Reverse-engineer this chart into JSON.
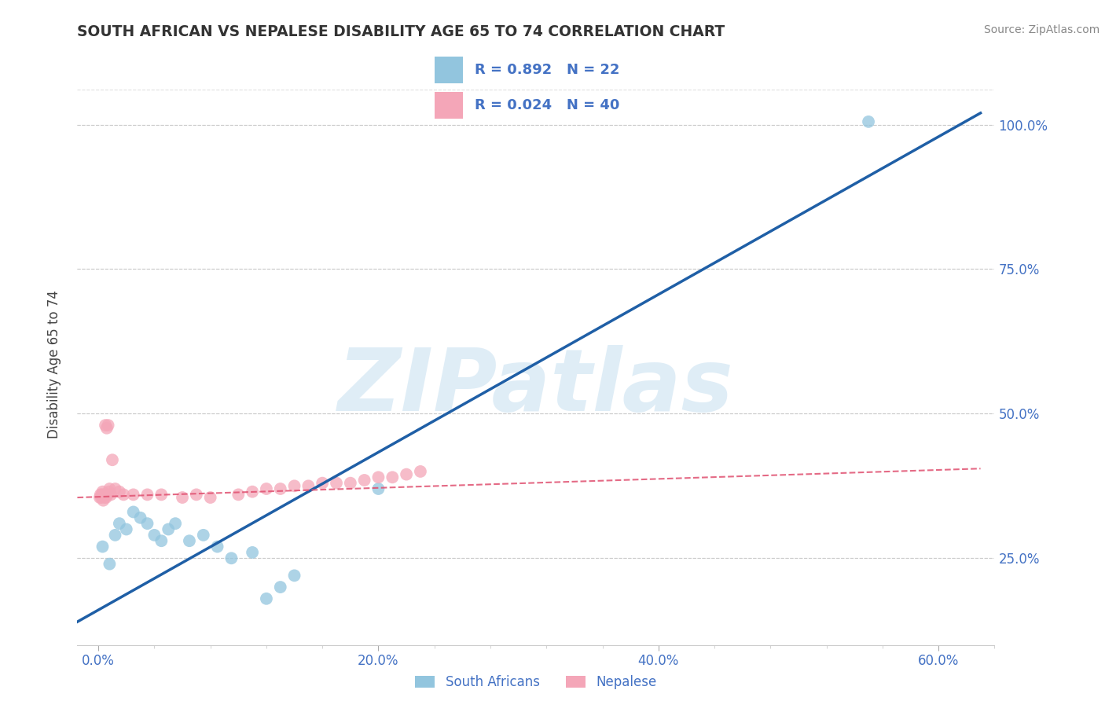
{
  "title": "SOUTH AFRICAN VS NEPALESE DISABILITY AGE 65 TO 74 CORRELATION CHART",
  "source_text": "Source: ZipAtlas.com",
  "ylabel": "Disability Age 65 to 74",
  "xlabel_ticks": [
    "0.0%",
    "",
    "",
    "",
    "",
    "20.0%",
    "",
    "",
    "",
    "",
    "40.0%",
    "",
    "",
    "",
    "",
    "60.0%"
  ],
  "xlabel_vals": [
    0.0,
    4.0,
    8.0,
    12.0,
    16.0,
    20.0,
    24.0,
    28.0,
    32.0,
    36.0,
    40.0,
    44.0,
    48.0,
    52.0,
    56.0,
    60.0
  ],
  "xlim": [
    -1.5,
    63.0
  ],
  "ylim": [
    10.0,
    107.0
  ],
  "ytick_labels": [
    "25.0%",
    "50.0%",
    "75.0%",
    "100.0%"
  ],
  "ytick_vals": [
    25.0,
    50.0,
    75.0,
    100.0
  ],
  "watermark": "ZIPatlas",
  "legend_r_blue": "R = 0.892",
  "legend_n_blue": "N = 22",
  "legend_r_pink": "R = 0.024",
  "legend_n_pink": "N = 40",
  "legend_label_blue": "South Africans",
  "legend_label_pink": "Nepalese",
  "blue_color": "#92c5de",
  "pink_color": "#f4a6b8",
  "blue_line_color": "#1f5fa6",
  "pink_line_color": "#e05070",
  "background_color": "#ffffff",
  "grid_color": "#cccccc",
  "south_african_x": [
    0.3,
    0.8,
    1.2,
    1.5,
    2.0,
    2.5,
    3.0,
    3.5,
    4.0,
    4.5,
    5.0,
    5.5,
    6.5,
    7.5,
    8.5,
    9.5,
    11.0,
    12.0,
    13.0,
    14.0,
    20.0,
    55.0
  ],
  "south_african_y": [
    27.0,
    24.0,
    29.0,
    31.0,
    30.0,
    33.0,
    32.0,
    31.0,
    29.0,
    28.0,
    30.0,
    31.0,
    28.0,
    29.0,
    27.0,
    25.0,
    26.0,
    18.0,
    20.0,
    22.0,
    37.0,
    100.5
  ],
  "nepalese_x": [
    0.1,
    0.15,
    0.2,
    0.25,
    0.3,
    0.35,
    0.4,
    0.45,
    0.5,
    0.55,
    0.6,
    0.65,
    0.7,
    0.75,
    0.8,
    0.9,
    1.0,
    1.2,
    1.5,
    1.8,
    2.5,
    3.5,
    4.5,
    6.0,
    7.0,
    8.0,
    10.0,
    11.0,
    12.0,
    13.0,
    14.0,
    15.0,
    16.0,
    17.0,
    18.0,
    19.0,
    20.0,
    21.0,
    22.0,
    23.0
  ],
  "nepalese_y": [
    35.5,
    36.0,
    35.5,
    36.0,
    36.5,
    35.0,
    36.0,
    35.5,
    48.0,
    35.5,
    47.5,
    36.0,
    48.0,
    36.5,
    37.0,
    36.0,
    42.0,
    37.0,
    36.5,
    36.0,
    36.0,
    36.0,
    36.0,
    35.5,
    36.0,
    35.5,
    36.0,
    36.5,
    37.0,
    37.0,
    37.5,
    37.5,
    38.0,
    38.0,
    38.0,
    38.5,
    39.0,
    39.0,
    39.5,
    40.0
  ],
  "blue_line_x0": -1.5,
  "blue_line_y0": 14.0,
  "blue_line_x1": 63.0,
  "blue_line_y1": 102.0,
  "pink_line_x0": -1.5,
  "pink_line_y0": 35.5,
  "pink_line_x1": 63.0,
  "pink_line_y1": 40.5
}
